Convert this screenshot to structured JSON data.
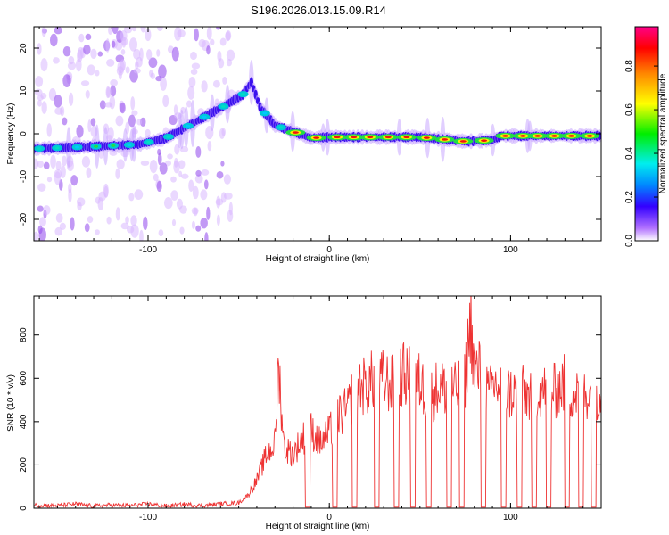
{
  "title": "S196.2026.013.15.09.R14",
  "chart_data": [
    {
      "type": "heatmap",
      "xlabel": "Height of straight line (km)",
      "ylabel": "Frequency (Hz)",
      "xlim": [
        -163,
        150
      ],
      "ylim": [
        -25,
        25
      ],
      "xticks": [
        -100,
        0,
        100
      ],
      "yticks": [
        -20,
        -10,
        0,
        10,
        20
      ],
      "colorbar": {
        "label": "Normalized spectral amplitude",
        "range": [
          0,
          0.98
        ],
        "ticks": [
          "0.0",
          "0.2",
          "0.4",
          "0.6",
          "0.8"
        ],
        "tick_values": [
          0.0,
          0.2,
          0.4,
          0.6,
          0.8
        ]
      },
      "ridge": [
        {
          "x": -163,
          "f": -3.5
        },
        {
          "x": -130,
          "f": -3.0
        },
        {
          "x": -105,
          "f": -2.5
        },
        {
          "x": -90,
          "f": -1.0
        },
        {
          "x": -75,
          "f": 2.5
        },
        {
          "x": -60,
          "f": 6.0
        },
        {
          "x": -48,
          "f": 9.0
        },
        {
          "x": -43,
          "f": 12.0
        },
        {
          "x": -38,
          "f": 6.0
        },
        {
          "x": -30,
          "f": 2.0
        },
        {
          "x": -20,
          "f": 0.5
        },
        {
          "x": -10,
          "f": -1.0
        },
        {
          "x": 0,
          "f": -0.8
        },
        {
          "x": 50,
          "f": -0.8
        },
        {
          "x": 75,
          "f": -1.8
        },
        {
          "x": 90,
          "f": -1.5
        },
        {
          "x": 95,
          "f": -0.5
        },
        {
          "x": 150,
          "f": -0.5
        }
      ]
    },
    {
      "type": "line",
      "xlabel": "Height of straight line (km)",
      "ylabel": "SNR (10 * v/v)",
      "xlim": [
        -163,
        150
      ],
      "ylim": [
        0,
        980
      ],
      "xticks": [
        -100,
        0,
        100
      ],
      "yticks": [
        0,
        200,
        400,
        600,
        800
      ],
      "series": [
        {
          "name": "SNR",
          "color": "#ee3333",
          "x": [
            -163,
            -150,
            -140,
            -130,
            -120,
            -110,
            -100,
            -90,
            -80,
            -70,
            -60,
            -50,
            -45,
            -40,
            -35,
            -30,
            -28,
            -25,
            -20,
            -15,
            -10,
            -5,
            0,
            5,
            10,
            15,
            20,
            25,
            30,
            35,
            40,
            45,
            50,
            55,
            60,
            65,
            70,
            75,
            78,
            80,
            85,
            88,
            90,
            95,
            100,
            105,
            110,
            115,
            120,
            125,
            130,
            135,
            140,
            145,
            150
          ],
          "y": [
            15,
            12,
            20,
            10,
            15,
            12,
            20,
            10,
            18,
            12,
            20,
            25,
            60,
            130,
            240,
            300,
            670,
            280,
            250,
            320,
            360,
            300,
            350,
            430,
            450,
            580,
            560,
            600,
            590,
            570,
            620,
            600,
            580,
            510,
            560,
            550,
            540,
            600,
            880,
            620,
            640,
            500,
            570,
            560,
            530,
            540,
            520,
            560,
            530,
            540,
            580,
            520,
            560,
            510,
            560
          ]
        }
      ]
    }
  ]
}
